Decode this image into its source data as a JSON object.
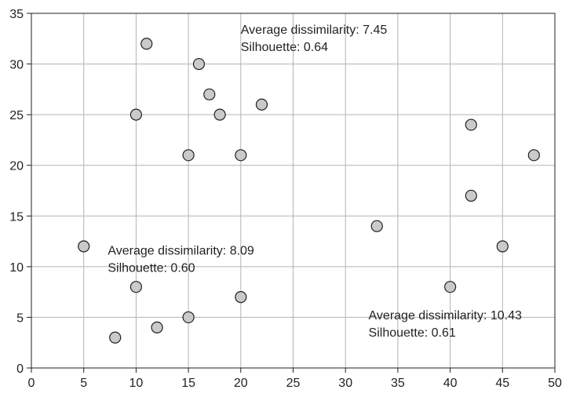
{
  "chart_data": {
    "type": "scatter",
    "title": "",
    "xlabel": "",
    "ylabel": "",
    "xlim": [
      0,
      50
    ],
    "ylim": [
      0,
      35
    ],
    "x_ticks": [
      0,
      5,
      10,
      15,
      20,
      25,
      30,
      35,
      40,
      45,
      50
    ],
    "y_ticks": [
      0,
      5,
      10,
      15,
      20,
      25,
      30,
      35
    ],
    "grid": true,
    "points": [
      {
        "x": 11,
        "y": 32
      },
      {
        "x": 16,
        "y": 30
      },
      {
        "x": 17,
        "y": 27
      },
      {
        "x": 22,
        "y": 26
      },
      {
        "x": 10,
        "y": 25
      },
      {
        "x": 18,
        "y": 25
      },
      {
        "x": 15,
        "y": 21
      },
      {
        "x": 20,
        "y": 21
      },
      {
        "x": 5,
        "y": 12
      },
      {
        "x": 10,
        "y": 8
      },
      {
        "x": 20,
        "y": 7
      },
      {
        "x": 15,
        "y": 5
      },
      {
        "x": 12,
        "y": 4
      },
      {
        "x": 8,
        "y": 3
      },
      {
        "x": 42,
        "y": 24
      },
      {
        "x": 48,
        "y": 21
      },
      {
        "x": 42,
        "y": 17
      },
      {
        "x": 33,
        "y": 14
      },
      {
        "x": 45,
        "y": 12
      },
      {
        "x": 40,
        "y": 8
      }
    ],
    "marker_fill": "#c8cacc",
    "marker_stroke": "#231f20",
    "grid_color": "#b3b3b3",
    "annotations": [
      {
        "dissimilarity_label": "Average dissimilarity:",
        "dissimilarity_value": "7.45",
        "silhouette_label": "Silhouette:",
        "silhouette_value": "0.64",
        "anchor_x": 20,
        "anchor_y": 33
      },
      {
        "dissimilarity_label": "Average dissimilarity:",
        "dissimilarity_value": "8.09",
        "silhouette_label": "Silhouette:",
        "silhouette_value": "0.60",
        "anchor_x": 7.3,
        "anchor_y": 11.2
      },
      {
        "dissimilarity_label": "Average dissimilarity:",
        "dissimilarity_value": "10.43",
        "silhouette_label": "Silhouette:",
        "silhouette_value": "0.61",
        "anchor_x": 32.2,
        "anchor_y": 4.8
      }
    ]
  }
}
